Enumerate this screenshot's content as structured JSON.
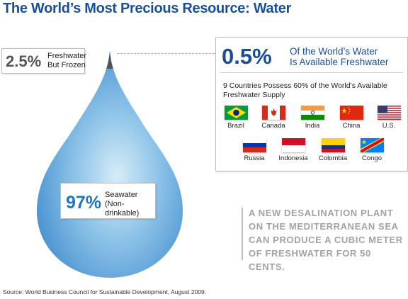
{
  "title": "The World’s Most Precious Resource: Water",
  "frozen": {
    "percent": "2.5%",
    "label_line1": "Freshwater",
    "label_line2": "But Frozen"
  },
  "seawater": {
    "percent": "97%",
    "label_line1": "Seawater",
    "label_line2": "(Non-drinkable)"
  },
  "available": {
    "percent": "0.5%",
    "headline_line1": "Of the World’s Water",
    "headline_line2": "Is Available Freshwater",
    "subtext": "9 Countries Possess 60% of the World’s Available Freshwater Supply",
    "countries": [
      {
        "name": "Brazil",
        "flag": "brazil-flag-icon"
      },
      {
        "name": "Canada",
        "flag": "canada-flag-icon"
      },
      {
        "name": "India",
        "flag": "india-flag-icon"
      },
      {
        "name": "China",
        "flag": "china-flag-icon"
      },
      {
        "name": "U.S.",
        "flag": "us-flag-icon"
      },
      {
        "name": "Russia",
        "flag": "russia-flag-icon"
      },
      {
        "name": "Indonesia",
        "flag": "indonesia-flag-icon"
      },
      {
        "name": "Colombia",
        "flag": "colombia-flag-icon"
      },
      {
        "name": "Congo",
        "flag": "congo-flag-icon"
      }
    ]
  },
  "fact": {
    "line1": "A NEW DESALINATION PLANT",
    "line2": "ON THE MEDITERRANEAN SEA",
    "line3": "CAN PRODUCE A CUBIC METER",
    "line4": "OF FRESHWATER FOR 50 CENTS."
  },
  "source": "Source: World Business Council for Sustainable Development, August 2009.",
  "colors": {
    "title": "#1a4f96",
    "seawater_pct": "#1f74c7",
    "frozen_band": "#555555",
    "fresh_tip": "#1a4f96"
  }
}
